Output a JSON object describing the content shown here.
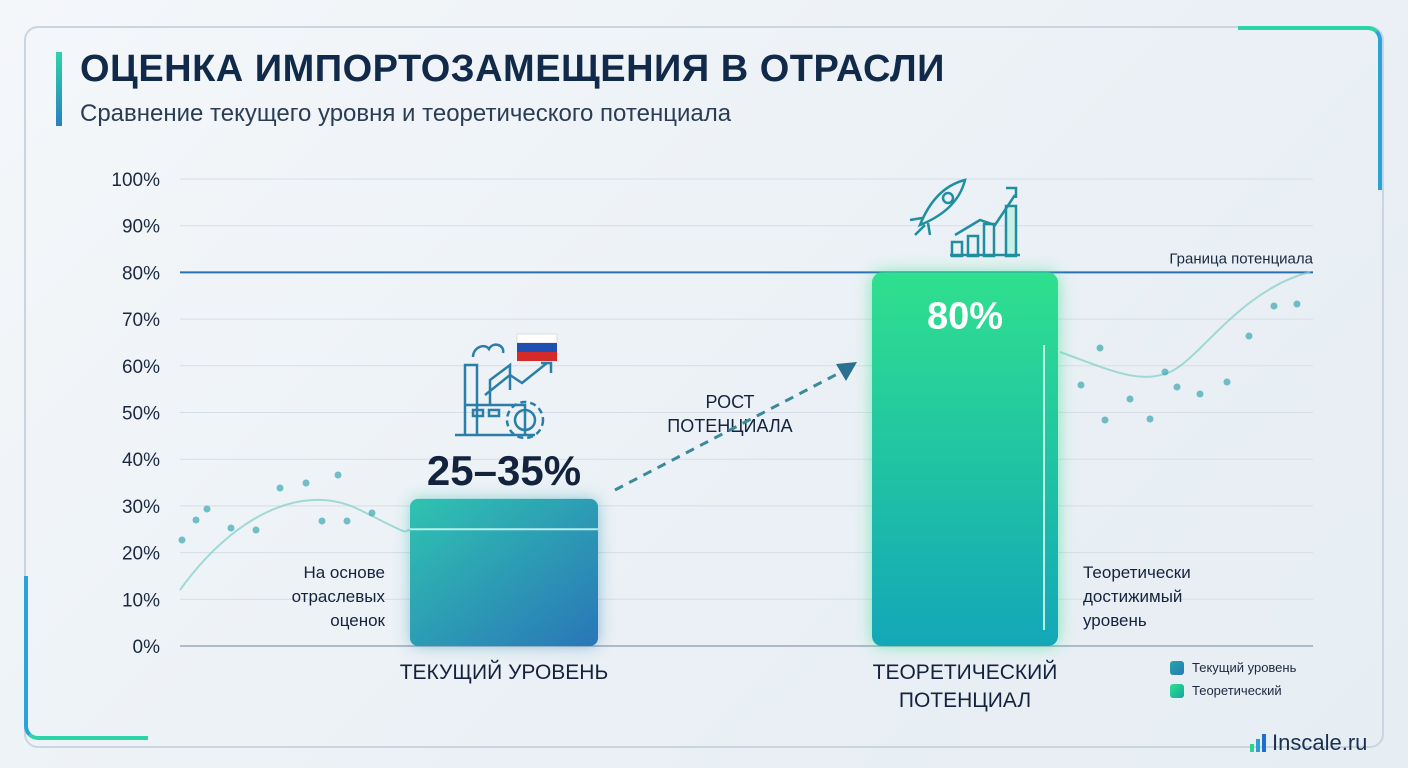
{
  "header": {
    "title": "ОЦЕНКА ИМПОРТОЗАМЕЩЕНИЯ В ОТРАСЛИ",
    "subtitle": "Сравнение текущего уровня и теоретического потенциала"
  },
  "chart_data": {
    "type": "bar",
    "categories": [
      "ТЕКУЩИЙ УРОВЕНЬ",
      "ТЕОРЕТИЧЕСКИЙ ПОТЕНЦИАЛ"
    ],
    "category_lines": [
      [
        "ТЕКУЩИЙ УРОВЕНЬ"
      ],
      [
        "ТЕОРЕТИЧЕСКИЙ",
        "ПОТЕНЦИАЛ"
      ]
    ],
    "values": [
      [
        25,
        35
      ],
      80
    ],
    "data_labels": [
      "25–35%",
      "80%"
    ],
    "ylim": [
      0,
      100
    ],
    "yticks": [
      "0%",
      "10%",
      "20%",
      "30%",
      "40%",
      "50%",
      "60%",
      "70%",
      "80%",
      "90%",
      "100%"
    ],
    "reference_line": {
      "value": 80,
      "label": "Граница потенциала"
    },
    "annotations": {
      "left": [
        "На основе",
        "отраслевых",
        "оценок"
      ],
      "right": [
        "Теоретически",
        "достижимый",
        "уровень"
      ],
      "arrow": [
        "РОСТ",
        "ПОТЕНЦИАЛА"
      ]
    },
    "legend": [
      "Текущий уровень",
      "Теоретический"
    ],
    "legend_placement": "bottom-right",
    "colors": {
      "current": "#1f9fb0",
      "theoretical": "#22c98a",
      "reference": "#2a6fb0"
    }
  },
  "brand": {
    "name": "Inscale.ru"
  }
}
